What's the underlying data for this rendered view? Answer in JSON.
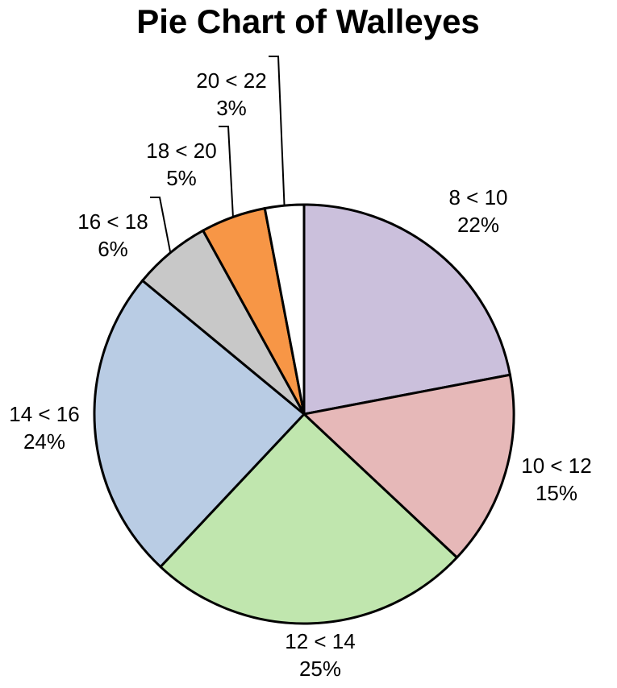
{
  "chart_data": {
    "type": "pie",
    "title": "Pie Chart of Walleyes",
    "categories": [
      "8 < 10",
      "10 < 12",
      "12 < 14",
      "14 < 16",
      "16 < 18",
      "18 < 20",
      "20 < 22"
    ],
    "values": [
      22,
      15,
      25,
      24,
      6,
      5,
      3
    ],
    "value_labels": [
      "22%",
      "15%",
      "25%",
      "24%",
      "6%",
      "5%",
      "3%"
    ],
    "colors": [
      "#cbc0dc",
      "#e6b8b8",
      "#c0e6ae",
      "#b9cce4",
      "#c8c8c8",
      "#f79646",
      "#ffffff"
    ]
  }
}
